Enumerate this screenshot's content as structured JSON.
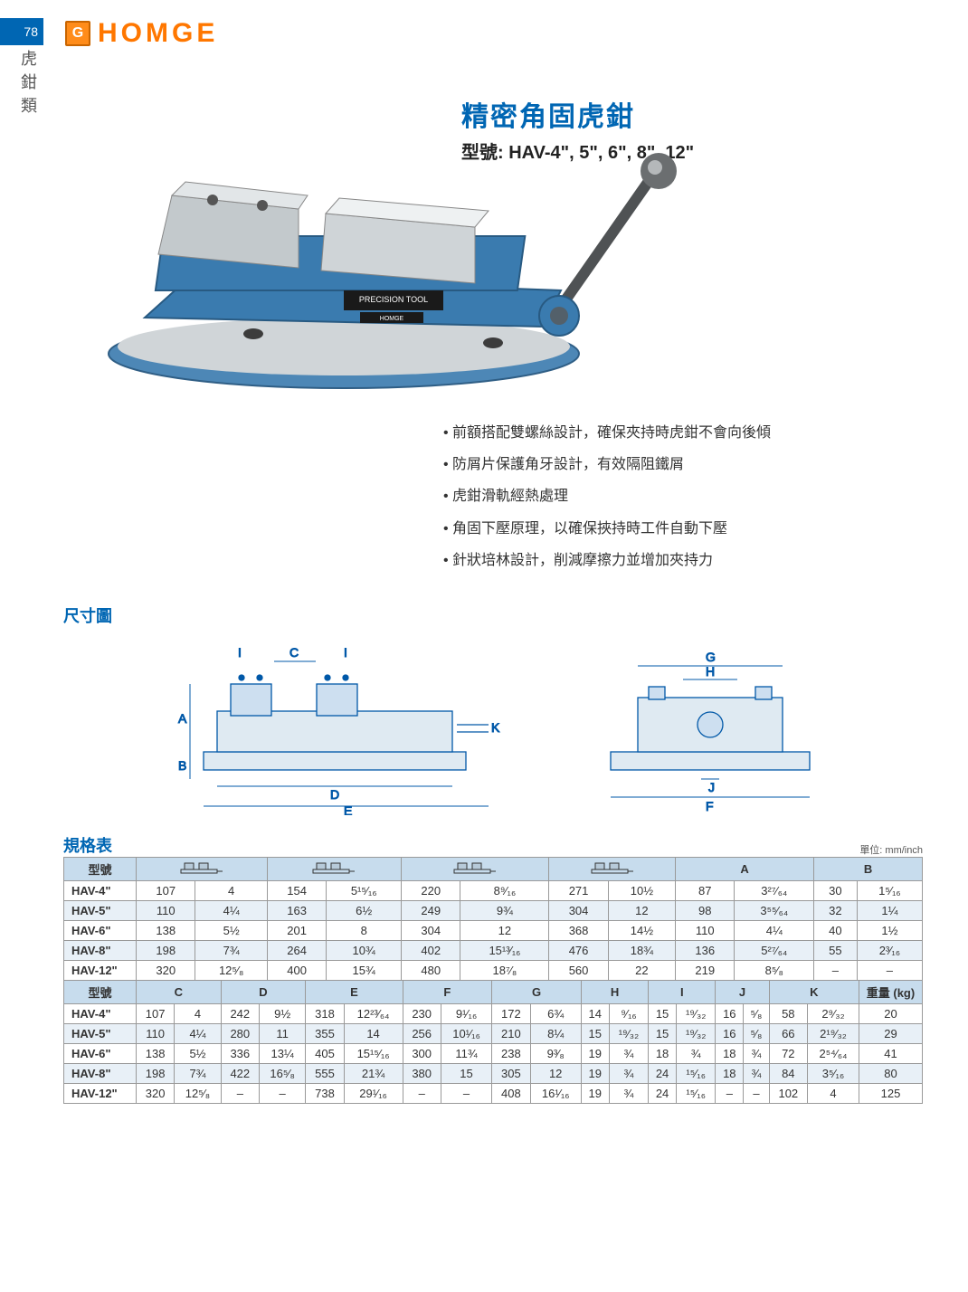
{
  "page_number": "78",
  "side_category": "虎鉗類",
  "logo_text": "HOMGE",
  "logo_icon_letter": "G",
  "product_title": "精密角固虎鉗",
  "model_label": "型號:",
  "model_value": "HAV-4\", 5\", 6\", 8\", 12\"",
  "image_labels": {
    "plate1": "PRECISION TOOL",
    "plate2": "HOMGE"
  },
  "features": [
    "前額搭配雙螺絲設計，確保夾持時虎鉗不會向後傾",
    "防屑片保護角牙設計，有效隔阻鐵屑",
    "虎鉗滑軌經熱處理",
    "角固下壓原理，以確保挾持時工件自動下壓",
    "針狀培林設計，削減摩擦力並增加夾持力"
  ],
  "dimension_section_label": "尺寸圖",
  "diagram_labels": {
    "side": [
      "A",
      "B",
      "C",
      "D",
      "E",
      "I",
      "I",
      "K"
    ],
    "front": [
      "F",
      "G",
      "H",
      "J"
    ]
  },
  "spec_section_label": "規格表",
  "unit_note": "單位: mm/inch",
  "colors": {
    "brand_blue": "#0066b3",
    "brand_orange": "#ff7700",
    "header_bg": "#c7dced",
    "alt_row_bg": "#e8f0f7",
    "vise_blue": "#3a7baf",
    "vise_metal": "#c3c9cc"
  },
  "table1": {
    "header": [
      "型號",
      "",
      "",
      "",
      "",
      "",
      "",
      "",
      "",
      "A",
      "B"
    ],
    "rows": [
      {
        "model": "HAV-4\"",
        "cells": [
          "107",
          "4",
          "154",
          "5¹⁵⁄₁₆",
          "220",
          "8⁹⁄₁₆",
          "271",
          "10½",
          "87",
          "3²⁷⁄₆₄",
          "30",
          "1⁵⁄₁₆"
        ]
      },
      {
        "model": "HAV-5\"",
        "cells": [
          "110",
          "4¼",
          "163",
          "6½",
          "249",
          "9¾",
          "304",
          "12",
          "98",
          "3⁵⁵⁄₆₄",
          "32",
          "1¼"
        ],
        "alt": true
      },
      {
        "model": "HAV-6\"",
        "cells": [
          "138",
          "5½",
          "201",
          "8",
          "304",
          "12",
          "368",
          "14½",
          "110",
          "4¼",
          "40",
          "1½"
        ]
      },
      {
        "model": "HAV-8\"",
        "cells": [
          "198",
          "7¾",
          "264",
          "10¾",
          "402",
          "15¹³⁄₁₆",
          "476",
          "18¾",
          "136",
          "5²⁷⁄₆₄",
          "55",
          "2³⁄₁₆"
        ],
        "alt": true
      },
      {
        "model": "HAV-12\"",
        "cells": [
          "320",
          "12⁵⁄₈",
          "400",
          "15¾",
          "480",
          "18⁷⁄₈",
          "560",
          "22",
          "219",
          "8⁵⁄₈",
          "–",
          "–"
        ]
      }
    ]
  },
  "table2": {
    "header": [
      "型號",
      "C",
      "D",
      "E",
      "F",
      "G",
      "H",
      "I",
      "J",
      "K",
      "重量 (kg)"
    ],
    "rows": [
      {
        "model": "HAV-4\"",
        "cells": [
          "107",
          "4",
          "242",
          "9½",
          "318",
          "12²³⁄₆₄",
          "230",
          "9¹⁄₁₆",
          "172",
          "6¾",
          "14",
          "⁹⁄₁₆",
          "15",
          "¹⁹⁄₃₂",
          "16",
          "⁵⁄₈",
          "58",
          "2⁹⁄₃₂",
          "20"
        ]
      },
      {
        "model": "HAV-5\"",
        "cells": [
          "110",
          "4¼",
          "280",
          "11",
          "355",
          "14",
          "256",
          "10¹⁄₁₆",
          "210",
          "8¼",
          "15",
          "¹⁹⁄₃₂",
          "15",
          "¹⁹⁄₃₂",
          "16",
          "⁵⁄₈",
          "66",
          "2¹⁹⁄₃₂",
          "29"
        ],
        "alt": true
      },
      {
        "model": "HAV-6\"",
        "cells": [
          "138",
          "5½",
          "336",
          "13¼",
          "405",
          "15¹⁵⁄₁₆",
          "300",
          "11¾",
          "238",
          "9³⁄₈",
          "19",
          "¾",
          "18",
          "¾",
          "18",
          "¾",
          "72",
          "2⁵⁴⁄₆₄",
          "41"
        ]
      },
      {
        "model": "HAV-8\"",
        "cells": [
          "198",
          "7¾",
          "422",
          "16⁵⁄₈",
          "555",
          "21¾",
          "380",
          "15",
          "305",
          "12",
          "19",
          "¾",
          "24",
          "¹⁵⁄₁₆",
          "18",
          "¾",
          "84",
          "3⁵⁄₁₆",
          "80"
        ],
        "alt": true
      },
      {
        "model": "HAV-12\"",
        "cells": [
          "320",
          "12⁵⁄₈",
          "–",
          "–",
          "738",
          "29¹⁄₁₆",
          "–",
          "–",
          "408",
          "16¹⁄₁₆",
          "19",
          "¾",
          "24",
          "¹⁵⁄₁₆",
          "–",
          "–",
          "102",
          "4",
          "125"
        ]
      }
    ]
  }
}
